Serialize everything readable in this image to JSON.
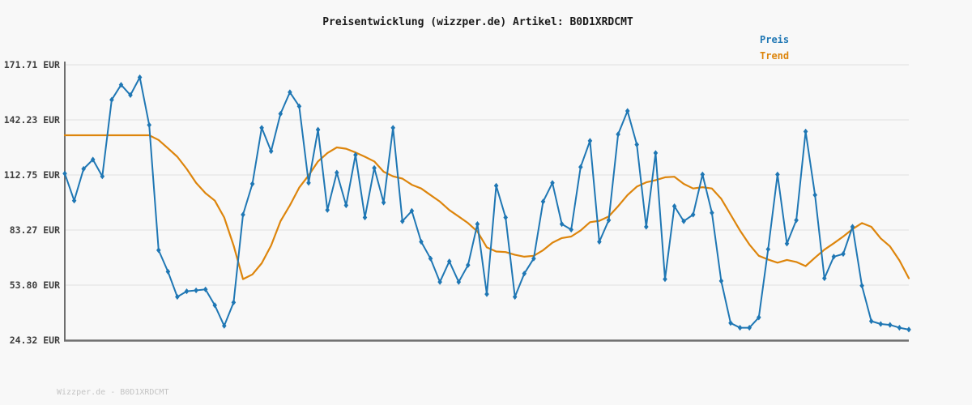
{
  "header": {
    "title": "Preisentwicklung (wizzper.de) Artikel: B0D1XRDCMT"
  },
  "legend": {
    "preis_label": "Preis",
    "trend_label": "Trend"
  },
  "footer": {
    "text": "Wizzper.de - B0D1XRDCMT"
  },
  "colors": {
    "preis": "#1f77b4",
    "trend": "#dd850c",
    "grid": "#e4e4e4",
    "spine": "#6f6f6f",
    "background": "#f8f8f8"
  },
  "chart_data": {
    "type": "line",
    "title": "Preisentwicklung (wizzper.de) Artikel: B0D1XRDCMT",
    "xlabel": "",
    "ylabel": "EUR",
    "x_axis_note": "time, unlabeled (91 evenly spaced observations)",
    "ylim": [
      24.32,
      171.71
    ],
    "yticks": [
      171.71,
      142.23,
      112.75,
      83.27,
      53.8,
      24.32
    ],
    "ytick_labels": [
      "171.71 EUR",
      "142.23 EUR",
      "112.75 EUR",
      "83.27 EUR",
      "53.80 EUR",
      "24.32 EUR"
    ],
    "grid": "horizontal",
    "legend_position": "top-right",
    "series": [
      {
        "name": "Preis",
        "color": "#1f77b4",
        "marker": "diamond",
        "values": [
          113.5,
          99,
          116,
          121,
          112,
          153,
          161,
          155.5,
          165,
          139.5,
          72.5,
          61,
          47.5,
          50.5,
          51,
          51.5,
          43,
          32,
          44.5,
          91.5,
          108,
          138,
          125.5,
          145.5,
          157,
          149.5,
          108.5,
          137,
          94,
          114,
          96.5,
          123.5,
          90,
          116.5,
          98,
          138,
          88,
          93.5,
          77,
          68,
          55.5,
          66.5,
          55.5,
          64.5,
          86.5,
          49,
          107,
          90,
          47.5,
          60,
          68,
          98.5,
          108.5,
          86.5,
          83.5,
          117,
          131,
          77,
          88.5,
          134.5,
          147,
          129,
          85,
          124.5,
          57,
          96,
          88,
          91.5,
          113,
          92.5,
          56,
          33.5,
          31,
          31,
          36.5,
          73,
          113,
          76,
          88.5,
          136,
          102,
          57.5,
          69,
          70.5,
          85,
          53.5,
          34.5,
          33,
          32.5,
          31,
          30
        ]
      },
      {
        "name": "Trend",
        "color": "#dd850c",
        "marker": "none",
        "values": [
          134,
          134,
          134,
          134,
          134,
          134,
          134,
          134,
          134,
          134,
          131.5,
          127,
          122.5,
          116,
          108.5,
          103,
          99,
          90,
          75,
          57,
          59.5,
          65.5,
          75,
          88,
          96.5,
          106,
          112.5,
          120,
          124.5,
          127.5,
          126.8,
          124.8,
          122.5,
          120,
          114.5,
          112,
          110.8,
          107.5,
          105.5,
          102,
          98.5,
          94,
          90.5,
          87,
          82.5,
          74,
          71.8,
          71.5,
          70,
          69,
          69.5,
          72.5,
          76.5,
          79,
          79.8,
          83,
          87.5,
          88.2,
          90.5,
          96,
          102,
          106.5,
          108.8,
          110,
          111.5,
          111.8,
          108,
          105.5,
          106.2,
          105.5,
          100,
          91.5,
          83,
          75.5,
          69.5,
          67.5,
          65.8,
          67.3,
          66.2,
          64,
          68.5,
          72.8,
          76.2,
          79.8,
          83.8,
          87,
          85,
          78.8,
          74.5,
          67,
          57.5
        ]
      }
    ]
  }
}
